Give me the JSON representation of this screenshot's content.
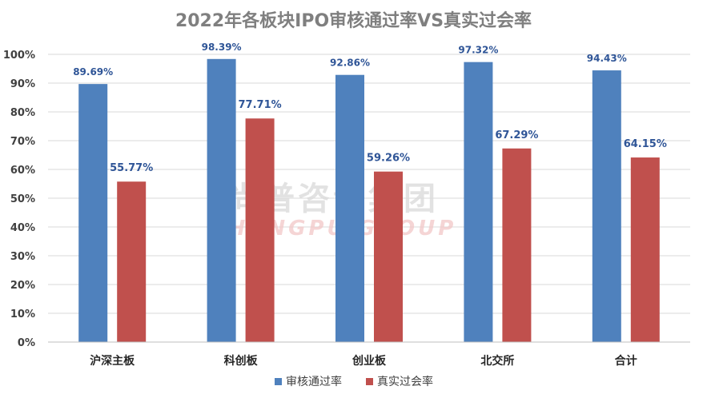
{
  "chart_data": {
    "type": "bar",
    "title": "2022年各板块IPO审核通过率VS真实过会率",
    "categories": [
      "沪深主板",
      "科创板",
      "创业板",
      "北交所",
      "合计"
    ],
    "series": [
      {
        "name": "审核通过率",
        "values": [
          89.69,
          98.39,
          92.86,
          97.32,
          94.43
        ],
        "labels": [
          "89.69%",
          "98.39%",
          "92.86%",
          "97.32%",
          "94.43%"
        ],
        "color": "#4f81bd"
      },
      {
        "name": "真实过会率",
        "values": [
          55.77,
          77.71,
          59.26,
          67.29,
          64.15
        ],
        "labels": [
          "55.77%",
          "77.71%",
          "59.26%",
          "67.29%",
          "64.15%"
        ],
        "color": "#c0504d"
      }
    ],
    "ylim": [
      0,
      100
    ],
    "yticks": [
      "0%",
      "10%",
      "20%",
      "30%",
      "40%",
      "50%",
      "60%",
      "70%",
      "80%",
      "90%",
      "100%"
    ],
    "grid": true,
    "legend": "bottom"
  },
  "watermark": {
    "cn": "尚普咨询集团",
    "en": "SHANGPU GROUP"
  }
}
